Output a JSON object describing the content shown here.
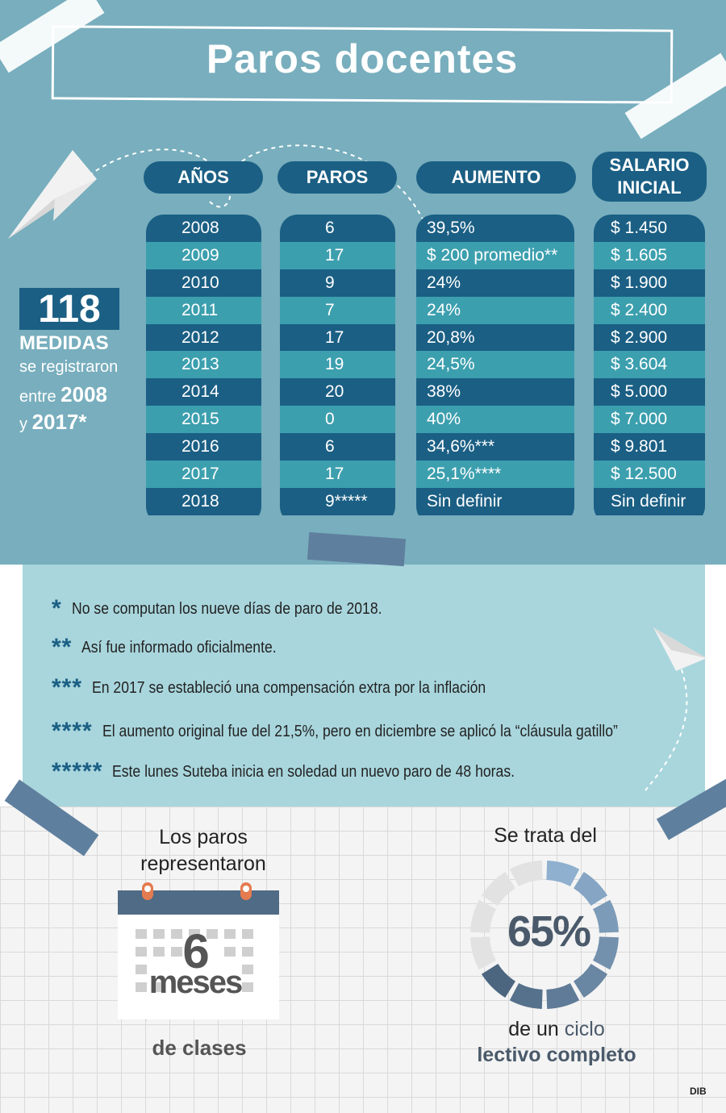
{
  "title": "Paros docentes",
  "summary": {
    "count": "118",
    "label": "MEDIDAS",
    "line1": "se registraron",
    "line2_prefix": "entre",
    "year_start": "2008",
    "line3_prefix": "y",
    "year_end": "2017*"
  },
  "table": {
    "headers": {
      "years": "AÑOS",
      "strikes": "PAROS",
      "raise": "AUMENTO",
      "salary": "SALARIO\nINICIAL"
    },
    "rows": [
      {
        "year": "2008",
        "strikes": "6",
        "raise": "39,5%",
        "salary": "$ 1.450"
      },
      {
        "year": "2009",
        "strikes": "17",
        "raise": "$ 200 promedio**",
        "salary": "$ 1.605"
      },
      {
        "year": "2010",
        "strikes": "9",
        "raise": "24%",
        "salary": "$ 1.900"
      },
      {
        "year": "2011",
        "strikes": "7",
        "raise": "24%",
        "salary": "$ 2.400"
      },
      {
        "year": "2012",
        "strikes": "17",
        "raise": "20,8%",
        "salary": "$ 2.900"
      },
      {
        "year": "2013",
        "strikes": "19",
        "raise": "24,5%",
        "salary": "$ 3.604"
      },
      {
        "year": "2014",
        "strikes": "20",
        "raise": "38%",
        "salary": "$ 5.000"
      },
      {
        "year": "2015",
        "strikes": "0",
        "raise": "40%",
        "salary": "$ 7.000"
      },
      {
        "year": "2016",
        "strikes": "6",
        "raise": "34,6%***",
        "salary": "$ 9.801"
      },
      {
        "year": "2017",
        "strikes": "17",
        "raise": "25,1%****",
        "salary": "$ 12.500"
      },
      {
        "year": "2018",
        "strikes": "9*****",
        "raise": "Sin definir",
        "salary": "Sin definir"
      }
    ]
  },
  "notes": [
    {
      "stars": "*",
      "text": "No se computan los nueve días de paro de 2018."
    },
    {
      "stars": "**",
      "text": "Así fue informado oficialmente."
    },
    {
      "stars": "***",
      "text": "En 2017 se estableció una compensación extra por la inflación"
    },
    {
      "stars": "****",
      "text": "El aumento original fue del 21,5%, pero en diciembre se aplicó la “cláusula gatillo”"
    },
    {
      "stars": "*****",
      "text": "Este lunes Suteba inicia en soledad un nuevo paro de 48 horas."
    }
  ],
  "stats": {
    "left": {
      "line1": "Los paros",
      "line2": "representaron",
      "number": "6",
      "unit": "meses",
      "line3": "de clases"
    },
    "right": {
      "line1": "Se trata del",
      "percent": "65%",
      "percent_value": 65,
      "line2_a": "de un",
      "line2_b": "ciclo",
      "line3": "lectivo completo"
    }
  },
  "credit": "DIB",
  "colors": {
    "teal_bg": "#78aebd",
    "navy": "#1b5f84",
    "light_row": "#3c9fae",
    "notes_bg": "#a9d6dd",
    "donut_light": "#8fb0cf",
    "donut_dark": "#4d6680"
  }
}
